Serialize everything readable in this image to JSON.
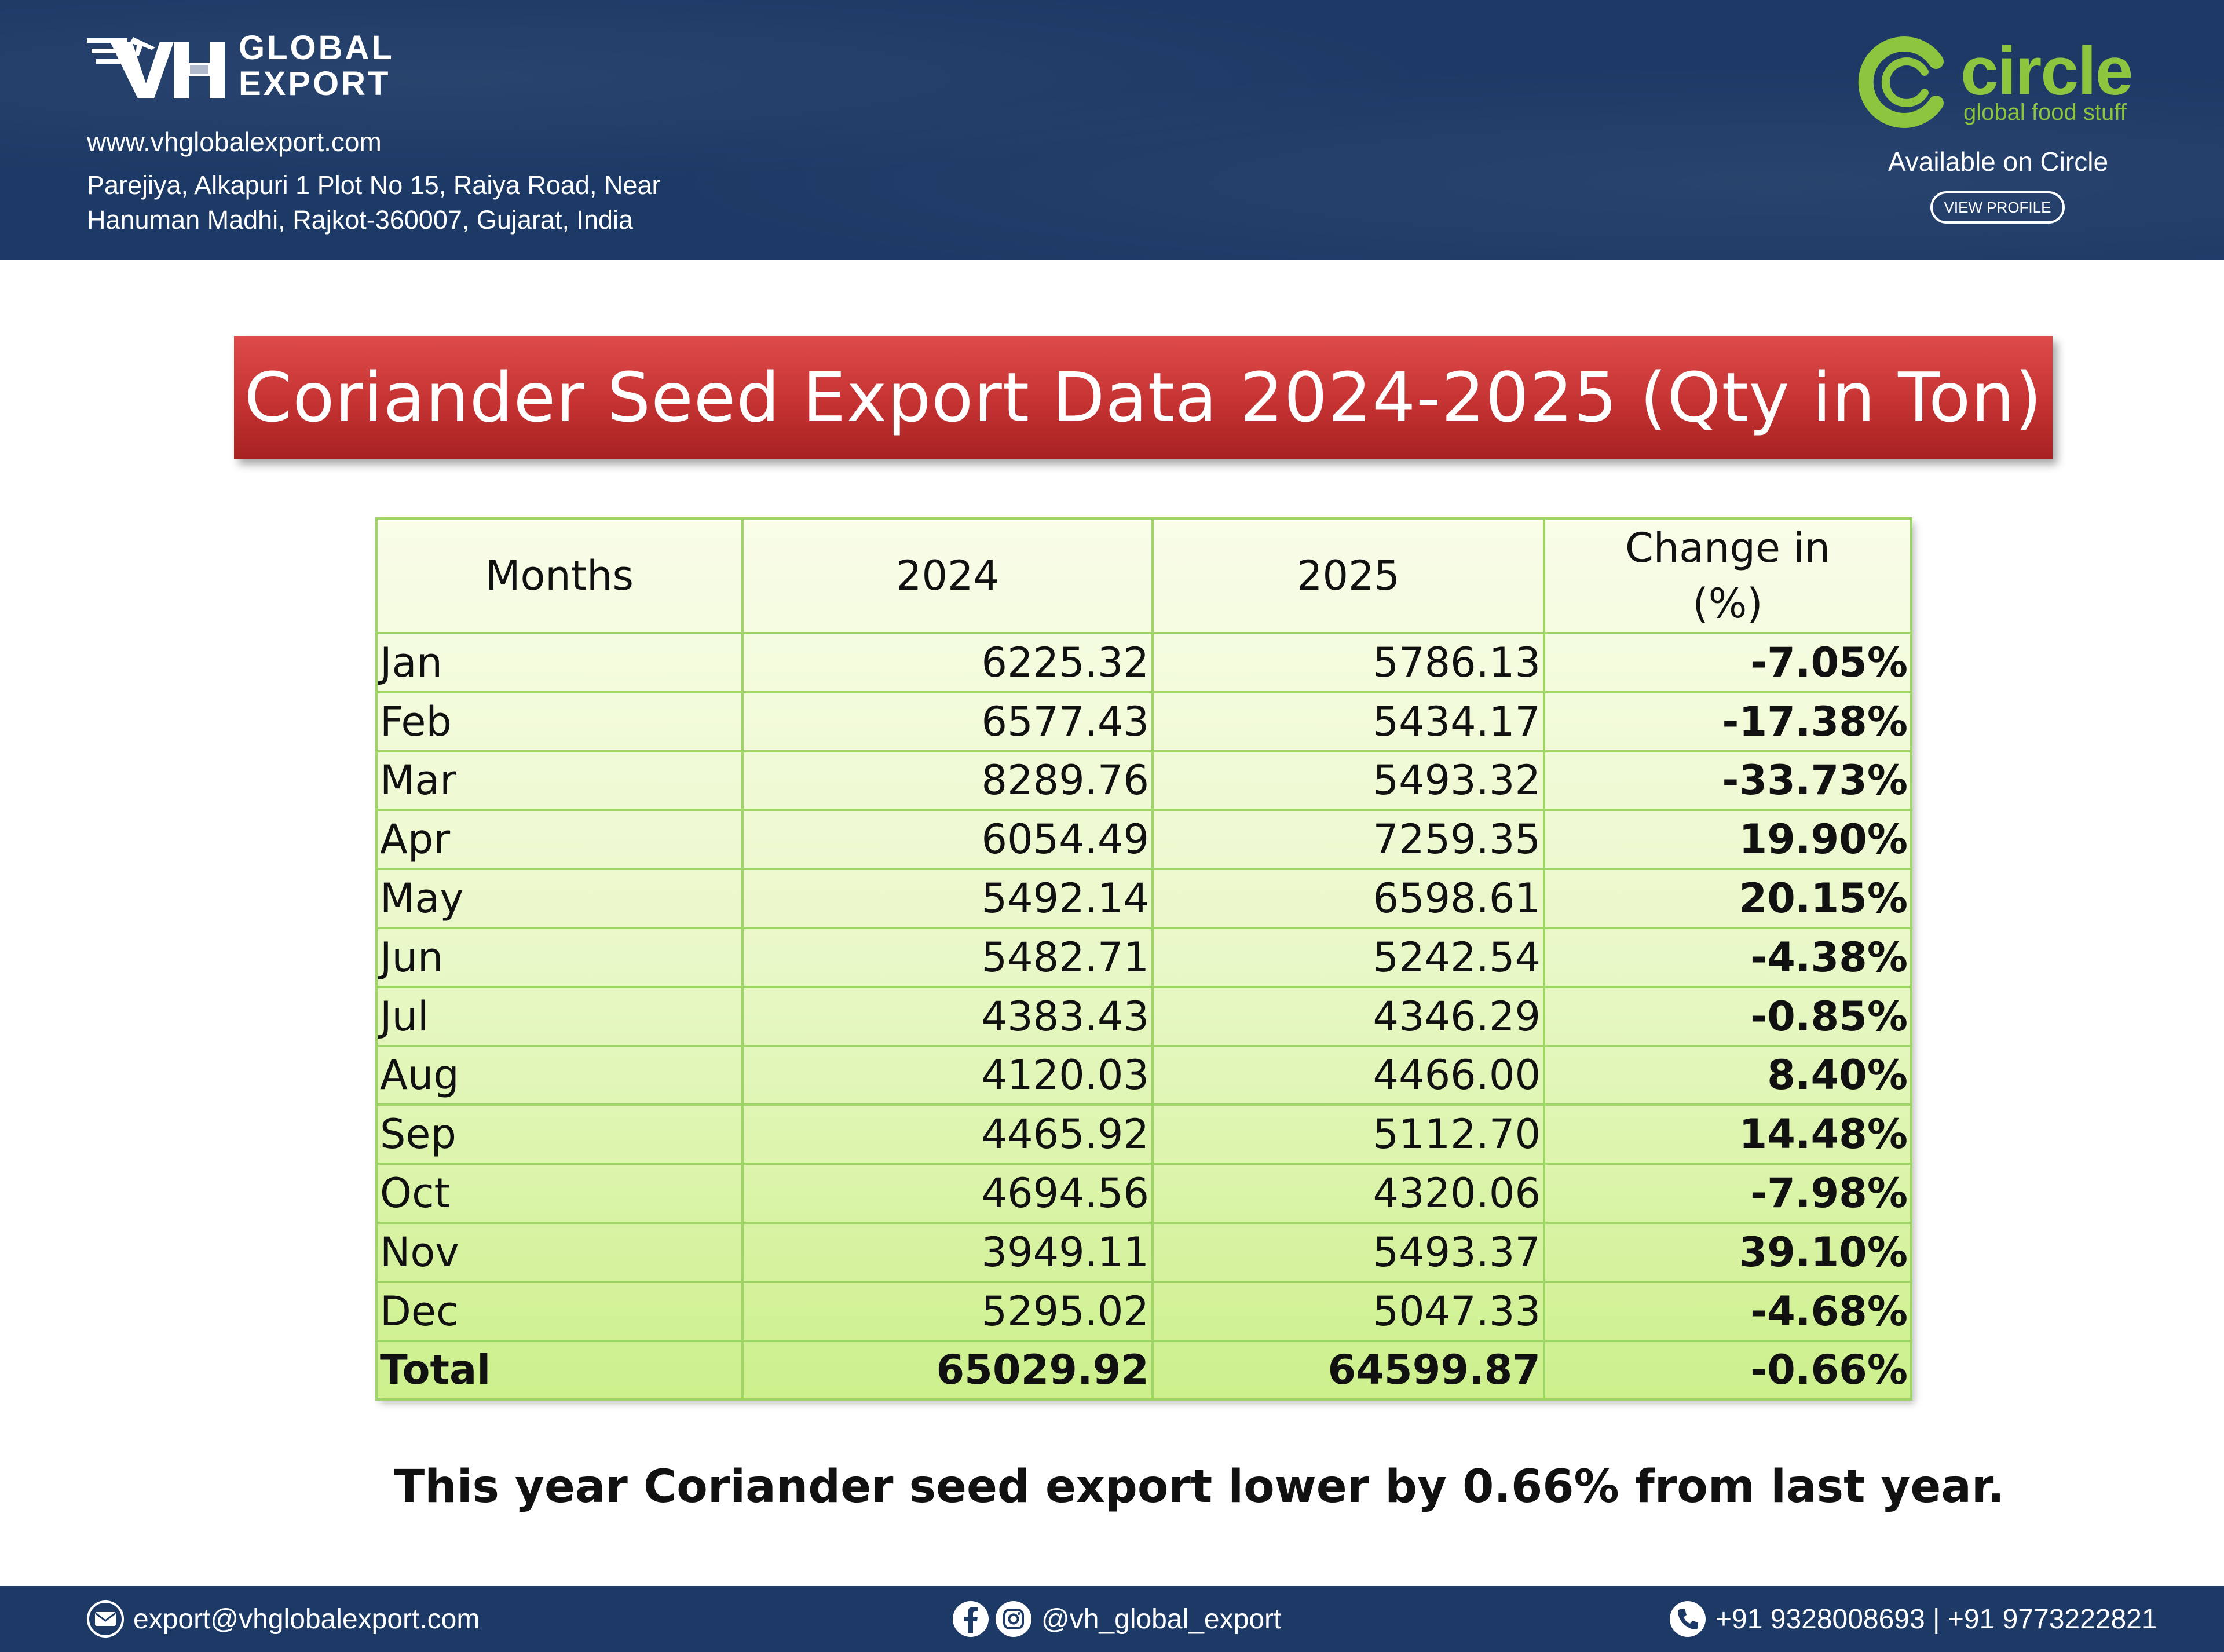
{
  "header": {
    "logo_text_line1": "GLOBAL",
    "logo_text_line2": "EXPORT",
    "website": "www.vhglobalexport.com",
    "address_line1": "Parejiya, Alkapuri 1 Plot No 15, Raiya Road, Near",
    "address_line2": "Hanuman Madhi, Rajkot-360007, Gujarat, India",
    "partner_name": "circle",
    "partner_tagline": "global food stuff",
    "available_text": "Available on Circle",
    "view_profile_label": "VIEW PROFILE"
  },
  "banner": {
    "title": "Coriander Seed Export Data 2024-2025 (Qty in Ton)"
  },
  "table": {
    "headers": {
      "month": "Months",
      "y2024": "2024",
      "y2025": "2025",
      "change_line1": "Change in",
      "change_line2": "(%)"
    },
    "rows": [
      {
        "month": "Jan",
        "y2024": "6225.32",
        "y2025": "5786.13",
        "change": "-7.05%"
      },
      {
        "month": "Feb",
        "y2024": "6577.43",
        "y2025": "5434.17",
        "change": "-17.38%"
      },
      {
        "month": "Mar",
        "y2024": "8289.76",
        "y2025": "5493.32",
        "change": "-33.73%"
      },
      {
        "month": "Apr",
        "y2024": "6054.49",
        "y2025": "7259.35",
        "change": "19.90%"
      },
      {
        "month": "May",
        "y2024": "5492.14",
        "y2025": "6598.61",
        "change": "20.15%"
      },
      {
        "month": "Jun",
        "y2024": "5482.71",
        "y2025": "5242.54",
        "change": "-4.38%"
      },
      {
        "month": "Jul",
        "y2024": "4383.43",
        "y2025": "4346.29",
        "change": "-0.85%"
      },
      {
        "month": "Aug",
        "y2024": "4120.03",
        "y2025": "4466.00",
        "change": "8.40%"
      },
      {
        "month": "Sep",
        "y2024": "4465.92",
        "y2025": "5112.70",
        "change": "14.48%"
      },
      {
        "month": "Oct",
        "y2024": "4694.56",
        "y2025": "4320.06",
        "change": "-7.98%"
      },
      {
        "month": "Nov",
        "y2024": "3949.11",
        "y2025": "5493.37",
        "change": "39.10%"
      },
      {
        "month": "Dec",
        "y2024": "5295.02",
        "y2025": "5047.33",
        "change": "-4.68%"
      }
    ],
    "total": {
      "month": "Total",
      "y2024": "65029.92",
      "y2025": "64599.87",
      "change": "-0.66%"
    }
  },
  "note": "This year Coriander seed export lower by 0.66% from last year.",
  "footer": {
    "email": "export@vhglobalexport.com",
    "social": "@vh_global_export",
    "phones": "+91 9328008693 | +91 9773222821"
  },
  "colors": {
    "header_bg": "#1d3a66",
    "banner_red": "#c53232",
    "table_green": "#cdf08c",
    "table_border": "#9fd566",
    "circle_green": "#8cc63f"
  }
}
